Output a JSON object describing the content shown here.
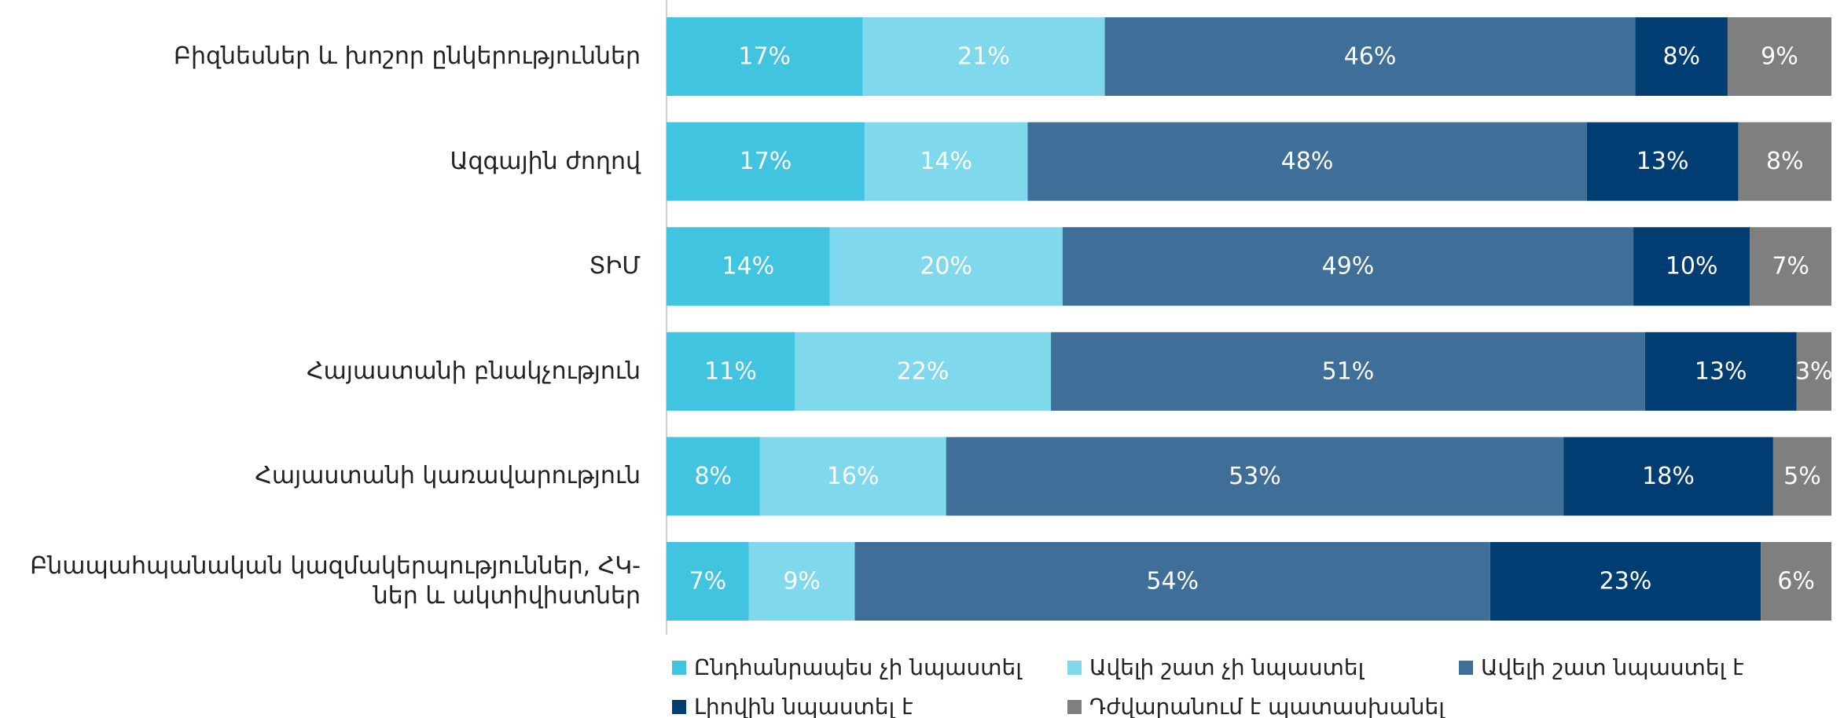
{
  "chart_data": {
    "type": "bar",
    "orientation": "horizontal",
    "stacked": "percent",
    "categories": [
      "Բիզնեսներ և խոշոր ընկերություններ",
      "Ազգային ժողով",
      "ՏԻՄ",
      "Հայաստանի բնակչություն",
      "Հայաստանի կառավարություն",
      "Բնապահպանական կազմակերպություններ, ՀԿ-ներ և ակտիվիստներ"
    ],
    "series": [
      {
        "name": "Ընդհանրապես չի նպաստել",
        "color": "#40c4e0",
        "values": [
          17,
          17,
          14,
          11,
          8,
          7
        ],
        "value_labels": [
          "17%",
          "17%",
          "14%",
          "11%",
          "8%",
          "7%"
        ]
      },
      {
        "name": "Ավելի շատ չի նպաստել",
        "color": "#7fd8ec",
        "values": [
          21,
          14,
          20,
          22,
          16,
          9
        ],
        "value_labels": [
          "21%",
          "14%",
          "20%",
          "22%",
          "16%",
          "9%"
        ]
      },
      {
        "name": "Ավելի շատ նպաստել է",
        "color": "#3f6e98",
        "values": [
          46,
          48,
          49,
          51,
          53,
          54
        ],
        "value_labels": [
          "46%",
          "48%",
          "49%",
          "51%",
          "53%",
          "54%"
        ]
      },
      {
        "name": "Լիովին նպաստել է",
        "color": "#003d73",
        "values": [
          8,
          13,
          10,
          13,
          18,
          23
        ],
        "value_labels": [
          "8%",
          "13%",
          "10%",
          "13%",
          "18%",
          "23%"
        ]
      },
      {
        "name": "Դժվարանում է պատասխանել",
        "color": "#7f7f7f",
        "values": [
          9,
          8,
          7,
          3,
          5,
          6
        ],
        "value_labels": [
          "9%",
          "8%",
          "7%",
          "3%",
          "5%",
          "6%"
        ]
      }
    ],
    "legend": "bottom"
  }
}
